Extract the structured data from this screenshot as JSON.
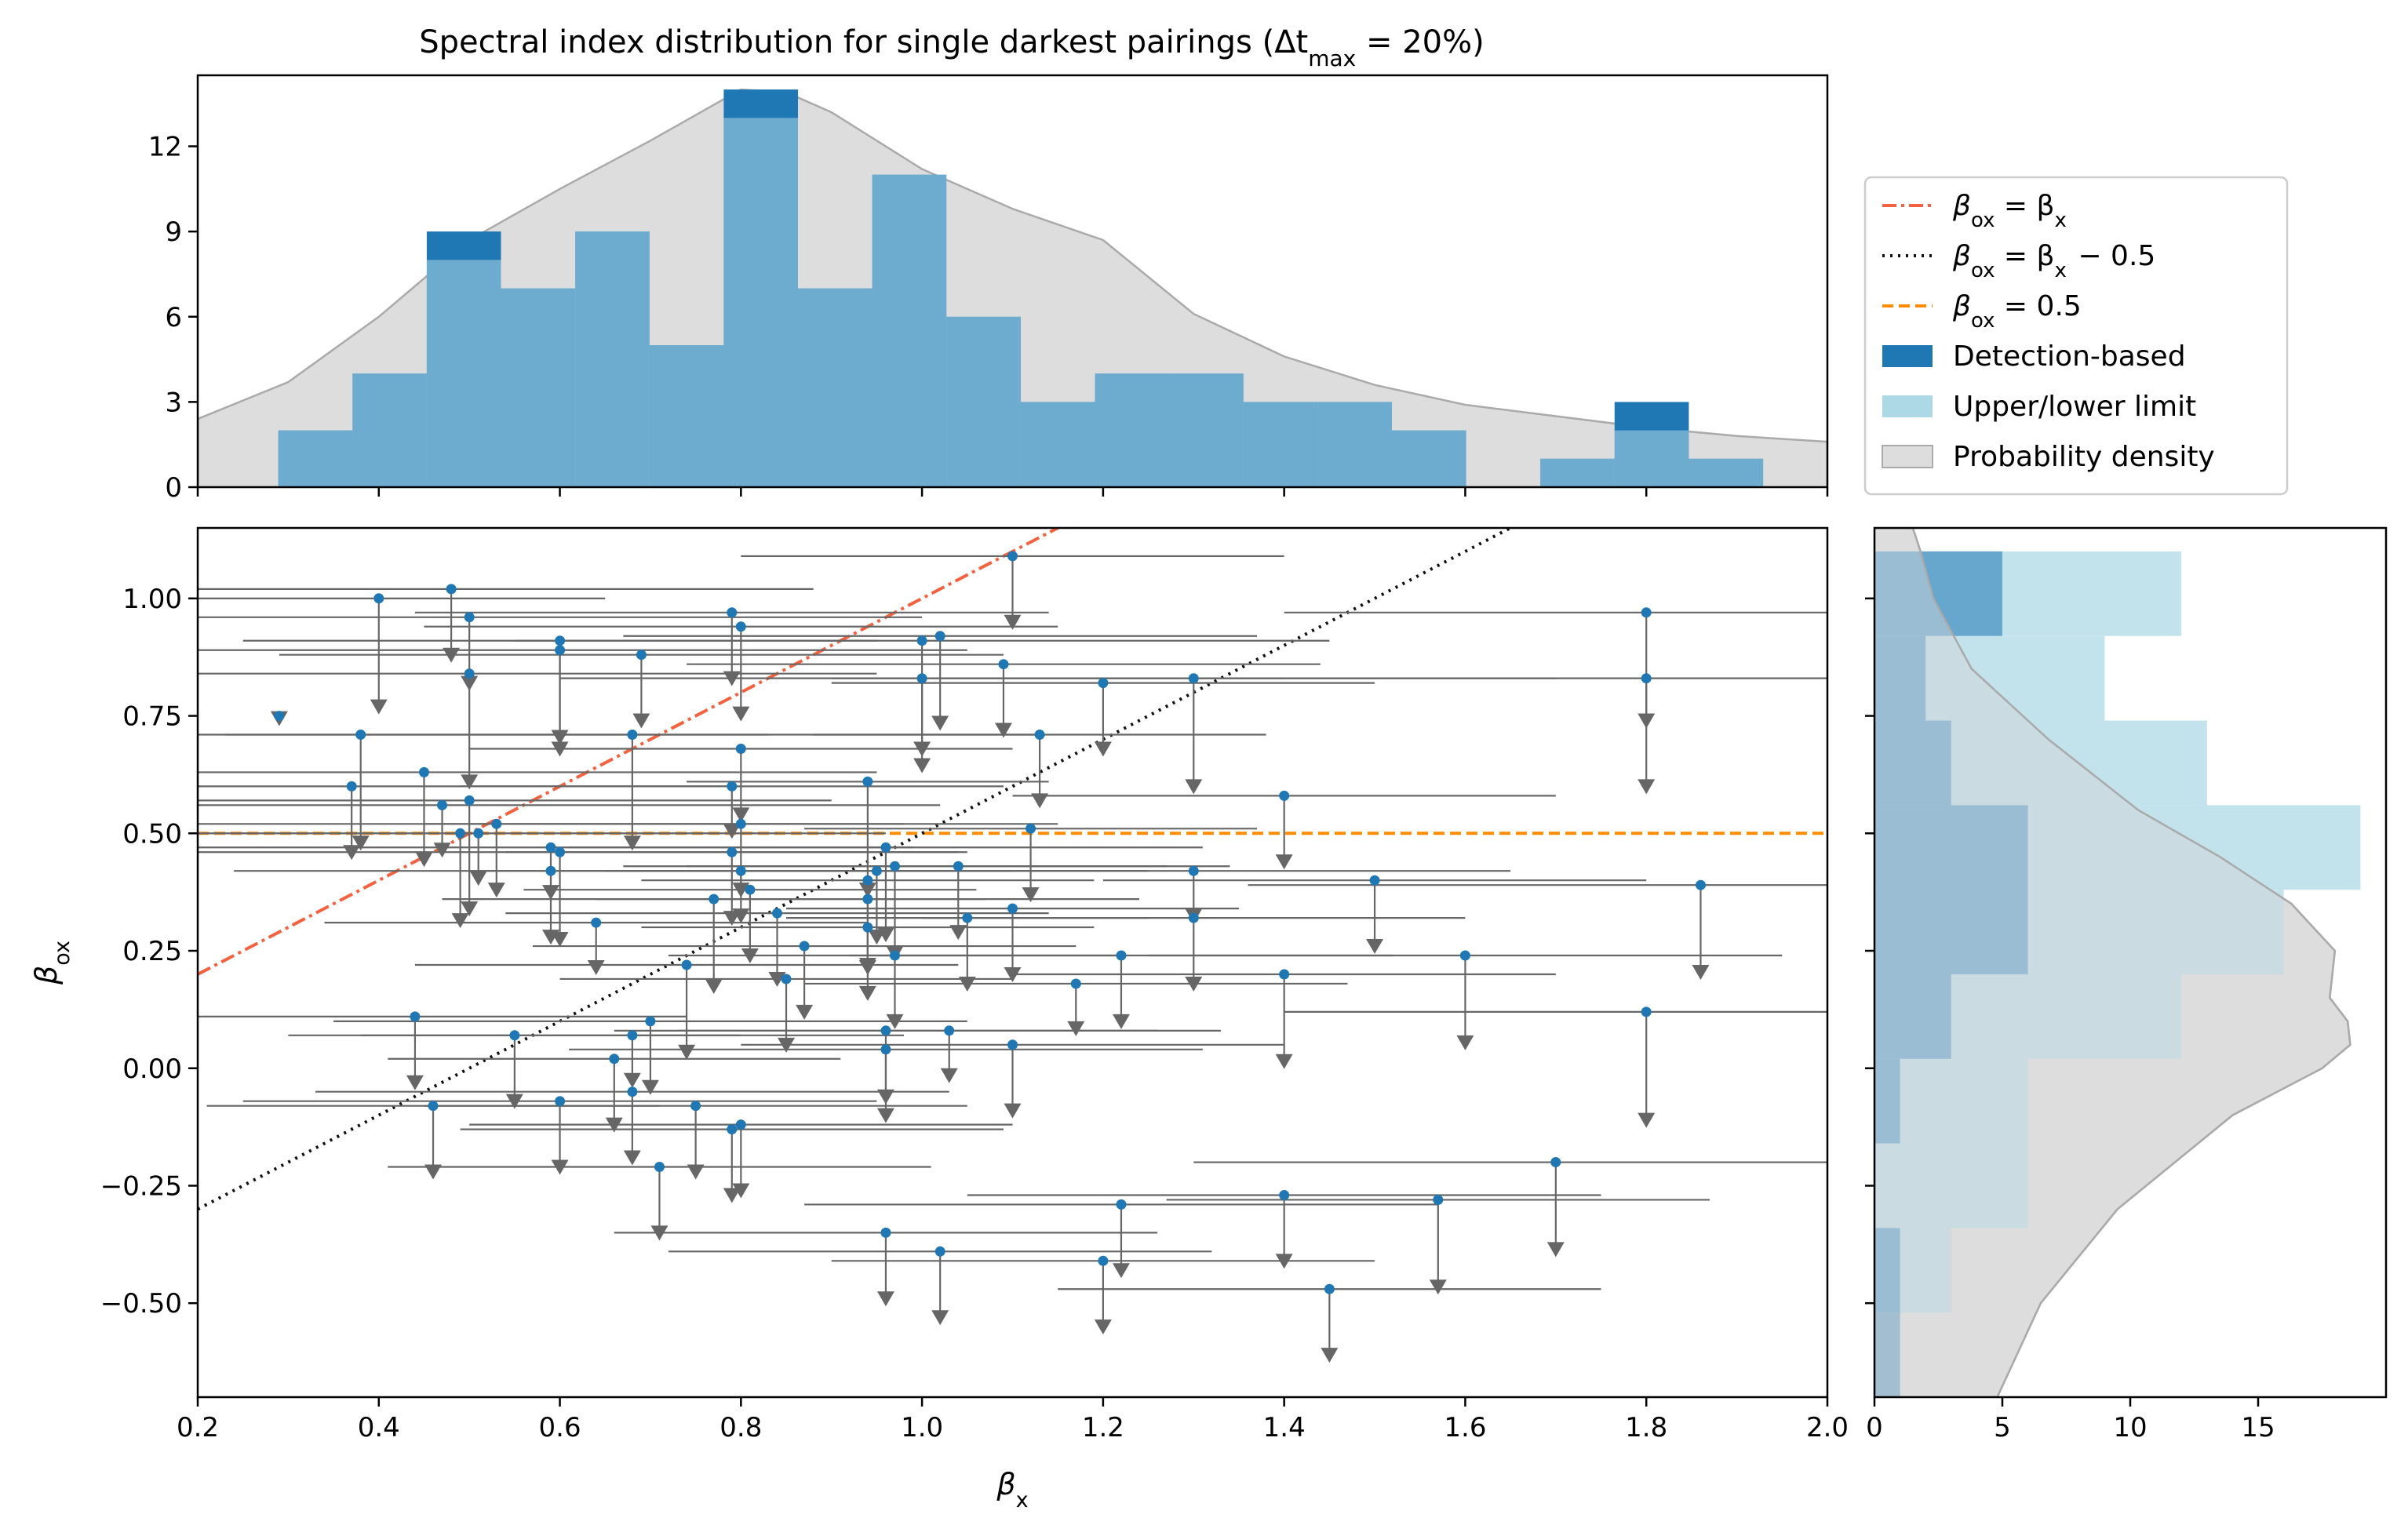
{
  "chart_data": [
    {
      "panel": "top-histogram",
      "type": "bar",
      "title": "Spectral index distribution for single darkest pairings (Δt",
      "title_sub": "max",
      "title_tail": " = 20%)",
      "xlim": [
        0.2,
        2.0
      ],
      "ylim": [
        0,
        14.5
      ],
      "yticks": [
        "0",
        "3",
        "6",
        "9",
        "12"
      ],
      "bin_edges": [
        0.289,
        0.371,
        0.453,
        0.535,
        0.617,
        0.699,
        0.781,
        0.863,
        0.945,
        1.027,
        1.109,
        1.191,
        1.273,
        1.355,
        1.437,
        1.519,
        1.601,
        1.683,
        1.765,
        1.847,
        1.929
      ],
      "series": [
        {
          "name": "Detection-based",
          "values": [
            2,
            4,
            9,
            7,
            9,
            5,
            14,
            7,
            11,
            6,
            3,
            4,
            4,
            3,
            3,
            2,
            0,
            1,
            3,
            1
          ]
        },
        {
          "name": "Upper/lower limit",
          "values": [
            2,
            4,
            8,
            7,
            9,
            5,
            13,
            7,
            11,
            6,
            3,
            4,
            4,
            3,
            3,
            2,
            0,
            1,
            2,
            1
          ]
        }
      ],
      "density": {
        "name": "Probability density",
        "x": [
          0.2,
          0.3,
          0.4,
          0.5,
          0.6,
          0.7,
          0.8,
          0.85,
          0.9,
          1.0,
          1.1,
          1.2,
          1.3,
          1.4,
          1.5,
          1.6,
          1.7,
          1.8,
          1.9,
          2.0
        ],
        "y": [
          2.4,
          3.7,
          6.0,
          8.7,
          10.5,
          12.2,
          14.0,
          13.9,
          13.2,
          11.2,
          9.8,
          8.7,
          6.1,
          4.6,
          3.6,
          2.9,
          2.5,
          2.1,
          1.8,
          1.6
        ]
      }
    },
    {
      "panel": "scatter",
      "type": "scatter",
      "xlabel": "β",
      "xlabel_sub": "x",
      "ylabel": "β",
      "ylabel_sub": "ox",
      "xlim": [
        0.2,
        2.0
      ],
      "ylim": [
        -0.7,
        1.15
      ],
      "xticks": [
        "0.2",
        "0.4",
        "0.6",
        "0.8",
        "1.0",
        "1.2",
        "1.4",
        "1.6",
        "1.8",
        "2.0"
      ],
      "yticks": [
        "−0.50",
        "−0.25",
        "0.00",
        "0.25",
        "0.50",
        "0.75",
        "1.00"
      ],
      "lines": [
        {
          "name": "β_ox = β_x",
          "kind": "dashdot",
          "color": "#f4613f"
        },
        {
          "name": "β_ox = β_x − 0.5",
          "kind": "dotted",
          "color": "#111111"
        },
        {
          "name": "β_ox = 0.5",
          "kind": "dashed",
          "color": "#ff8c00"
        }
      ],
      "points": [
        [
          0.29,
          0.75,
          -1,
          0
        ],
        [
          0.37,
          0.6,
          0.42,
          0.3
        ],
        [
          0.38,
          0.71,
          0.45,
          0.5
        ],
        [
          0.4,
          1.0,
          0.25,
          0.5
        ],
        [
          0.44,
          0.11,
          0.3,
          0.3
        ],
        [
          0.45,
          0.63,
          0.5,
          0.4
        ],
        [
          0.46,
          -0.08,
          0.25,
          0.3
        ],
        [
          0.47,
          0.56,
          0.55,
          0.2
        ],
        [
          0.48,
          1.02,
          0.4,
          0.3
        ],
        [
          0.49,
          0.5,
          0.35,
          0.4
        ],
        [
          0.5,
          0.96,
          0.5,
          0.3
        ],
        [
          0.5,
          0.84,
          0.45,
          0.5
        ],
        [
          0.5,
          0.57,
          0.4,
          0.5
        ],
        [
          0.51,
          0.5,
          0.45,
          0.2
        ],
        [
          0.53,
          0.52,
          0.45,
          0.3
        ],
        [
          0.55,
          0.07,
          0.25,
          0.3
        ],
        [
          0.59,
          0.47,
          0.4,
          0.2
        ],
        [
          0.59,
          0.42,
          0.35,
          0.3
        ],
        [
          0.6,
          0.91,
          0.35,
          0.5
        ],
        [
          0.6,
          0.89,
          0.45,
          0.4
        ],
        [
          0.6,
          0.46,
          0.45,
          0.4
        ],
        [
          0.6,
          -0.07,
          0.35,
          0.3
        ],
        [
          0.64,
          0.31,
          0.3,
          0.2
        ],
        [
          0.66,
          0.02,
          0.25,
          0.3
        ],
        [
          0.68,
          0.71,
          0.45,
          0.5
        ],
        [
          0.68,
          0.07,
          0.3,
          0.2
        ],
        [
          0.68,
          -0.05,
          0.35,
          0.3
        ],
        [
          0.69,
          0.88,
          0.4,
          0.3
        ],
        [
          0.7,
          0.1,
          0.35,
          0.3
        ],
        [
          0.71,
          -0.21,
          0.3,
          0.3
        ],
        [
          0.74,
          0.22,
          0.3,
          0.4
        ],
        [
          0.75,
          -0.08,
          0.3,
          0.3
        ],
        [
          0.77,
          0.36,
          0.3,
          0.4
        ],
        [
          0.79,
          0.97,
          0.35,
          0.3
        ],
        [
          0.79,
          0.6,
          0.3,
          0.2
        ],
        [
          0.79,
          0.46,
          0.25,
          0.3
        ],
        [
          0.79,
          -0.13,
          0.3,
          0.3
        ],
        [
          0.8,
          0.94,
          0.35,
          0.4
        ],
        [
          0.8,
          0.68,
          0.3,
          0.3
        ],
        [
          0.8,
          0.52,
          0.35,
          0.3
        ],
        [
          0.8,
          0.42,
          0.3,
          0.2
        ],
        [
          0.8,
          -0.12,
          0.3,
          0.3
        ],
        [
          0.81,
          0.38,
          0.25,
          0.3
        ],
        [
          0.84,
          0.33,
          0.3,
          0.3
        ],
        [
          0.85,
          0.19,
          0.25,
          0.3
        ],
        [
          0.87,
          0.26,
          0.3,
          0.3
        ],
        [
          0.94,
          0.61,
          0.2,
          0.5
        ],
        [
          0.94,
          0.4,
          0.25,
          0.4
        ],
        [
          0.94,
          0.36,
          0.3,
          0.3
        ],
        [
          0.94,
          0.3,
          0.25,
          0.3
        ],
        [
          0.95,
          0.42,
          0.3,
          0.3
        ],
        [
          0.96,
          0.47,
          0.35,
          0.4
        ],
        [
          0.96,
          0.08,
          0.3,
          0.3
        ],
        [
          0.96,
          0.04,
          0.35,
          0.3
        ],
        [
          0.96,
          -0.35,
          0.3,
          0.3
        ],
        [
          0.97,
          0.43,
          0.3,
          0.4
        ],
        [
          0.97,
          0.24,
          0.25,
          0.3
        ],
        [
          1.0,
          0.91,
          0.45,
          0.5
        ],
        [
          1.0,
          0.83,
          0.4,
          0.4
        ],
        [
          1.02,
          0.92,
          0.35,
          0.4
        ],
        [
          1.02,
          -0.39,
          0.3,
          0.3
        ],
        [
          1.03,
          0.08,
          0.3,
          0.2
        ],
        [
          1.04,
          0.43,
          0.3,
          0.3
        ],
        [
          1.05,
          0.32,
          0.2,
          0.3
        ],
        [
          1.09,
          0.86,
          0.35,
          0.3
        ],
        [
          1.1,
          1.09,
          0.3,
          0.3
        ],
        [
          1.1,
          0.34,
          0.25,
          0.3
        ],
        [
          1.1,
          0.05,
          0.3,
          0.3
        ],
        [
          1.12,
          0.51,
          0.25,
          0.3
        ],
        [
          1.13,
          0.71,
          0.25,
          0.3
        ],
        [
          1.17,
          0.18,
          0.3,
          0.2
        ],
        [
          1.2,
          0.82,
          0.3,
          0.3
        ],
        [
          1.2,
          -0.41,
          0.3,
          0.3
        ],
        [
          1.22,
          0.24,
          0.3,
          0.3
        ],
        [
          1.22,
          -0.29,
          0.35,
          0.3
        ],
        [
          1.3,
          0.83,
          0.4,
          0.5
        ],
        [
          1.3,
          0.42,
          0.35,
          0.2
        ],
        [
          1.3,
          0.32,
          0.3,
          0.3
        ],
        [
          1.4,
          0.58,
          0.3,
          0.3
        ],
        [
          1.4,
          0.2,
          0.3,
          0.4
        ],
        [
          1.4,
          -0.27,
          0.35,
          0.3
        ],
        [
          1.45,
          -0.47,
          0.3,
          0.3
        ],
        [
          1.5,
          0.4,
          0.3,
          0.3
        ],
        [
          1.57,
          -0.28,
          0.3,
          0.4
        ],
        [
          1.6,
          0.24,
          0.35,
          0.4
        ],
        [
          1.7,
          -0.2,
          0.4,
          0.4
        ],
        [
          1.8,
          0.97,
          0.4,
          0.5
        ],
        [
          1.8,
          0.83,
          0.45,
          0.5
        ],
        [
          1.8,
          0.12,
          0.4,
          0.5
        ],
        [
          1.86,
          0.39,
          0.5,
          0.4
        ]
      ]
    },
    {
      "panel": "right-histogram",
      "type": "bar",
      "orientation": "horizontal",
      "xlim": [
        0,
        20
      ],
      "xticks": [
        "0",
        "5",
        "10",
        "15"
      ],
      "bin_edges": [
        -0.7,
        -0.52,
        -0.34,
        -0.16,
        0.02,
        0.2,
        0.38,
        0.56,
        0.74,
        0.92,
        1.1
      ],
      "series": [
        {
          "name": "Detection-based",
          "values": [
            1,
            1,
            0,
            1,
            3,
            6,
            6,
            3,
            2,
            5
          ]
        },
        {
          "name": "Upper/lower limit",
          "values": [
            0,
            3,
            6,
            6,
            12,
            16,
            19,
            13,
            9,
            12
          ]
        }
      ],
      "density": {
        "name": "Probability density",
        "y": [
          -0.7,
          -0.5,
          -0.3,
          -0.1,
          0.0,
          0.05,
          0.1,
          0.15,
          0.25,
          0.35,
          0.45,
          0.55,
          0.7,
          0.85,
          1.0,
          1.1,
          1.15
        ],
        "x": [
          4.8,
          6.5,
          9.5,
          14.0,
          17.5,
          18.6,
          18.5,
          17.8,
          18.0,
          16.3,
          13.5,
          10.3,
          6.8,
          3.8,
          2.3,
          1.8,
          1.5
        ]
      }
    }
  ],
  "legend": {
    "items": [
      {
        "label": "β",
        "sub": "ox",
        "tail": " = β",
        "sub2": "x",
        "tail2": "",
        "kind": "dashdot",
        "color": "#f4613f"
      },
      {
        "label": "β",
        "sub": "ox",
        "tail": " = β",
        "sub2": "x",
        "tail2": " − 0.5",
        "kind": "dotted",
        "color": "#111111"
      },
      {
        "label": "β",
        "sub": "ox",
        "tail": " = 0.5",
        "sub2": "",
        "tail2": "",
        "kind": "dashed",
        "color": "#ff8c00"
      },
      {
        "label": "Detection-based",
        "kind": "patch",
        "color": "#1f77b4"
      },
      {
        "label": "Upper/lower limit",
        "kind": "patch",
        "color": "#add8e6"
      },
      {
        "label": "Probability density",
        "kind": "patch",
        "color": "#dddddd"
      }
    ]
  },
  "colors": {
    "detection": "#1f77b4",
    "limit": "#add8e6",
    "density": "#dddddd",
    "errorbar": "#666666",
    "point": "#1f77b4"
  }
}
